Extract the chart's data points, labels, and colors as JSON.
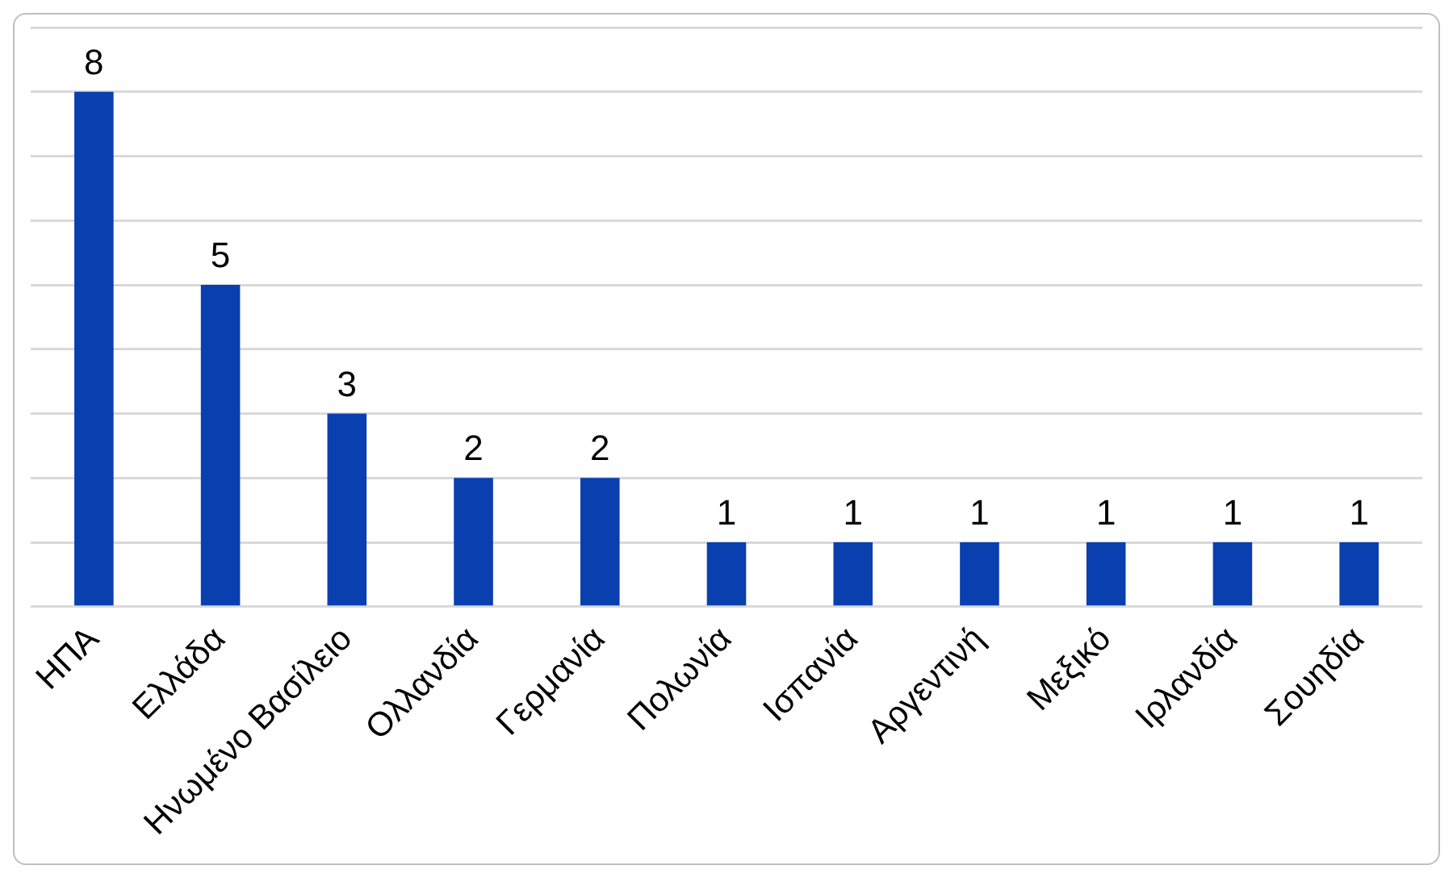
{
  "chart_data": {
    "type": "bar",
    "categories": [
      "ΗΠΑ",
      "Ελλάδα",
      "Ηνωμένο Βασίλειο",
      "Ολλανδία",
      "Γερμανία",
      "Πολωνία",
      "Ισπανία",
      "Αργεντινή",
      "Μεξικό",
      "Ιρλανδία",
      "Σουηδία"
    ],
    "values": [
      8,
      5,
      3,
      2,
      2,
      1,
      1,
      1,
      1,
      1,
      1
    ],
    "color": "#0a3fb0",
    "ylim": [
      0,
      9
    ],
    "yticks": [
      {
        "value": 0,
        "label": null
      },
      {
        "value": 1,
        "label": null
      },
      {
        "value": 2,
        "label": null
      },
      {
        "value": 3,
        "label": null
      },
      {
        "value": 4,
        "label": null
      },
      {
        "value": 5,
        "label": null
      },
      {
        "value": 6,
        "label": null
      },
      {
        "value": 7,
        "label": null
      },
      {
        "value": 8,
        "label": null
      },
      {
        "value": 9,
        "label": null
      }
    ],
    "grid": "y",
    "tick_labels": "x",
    "data_labels": true
  }
}
